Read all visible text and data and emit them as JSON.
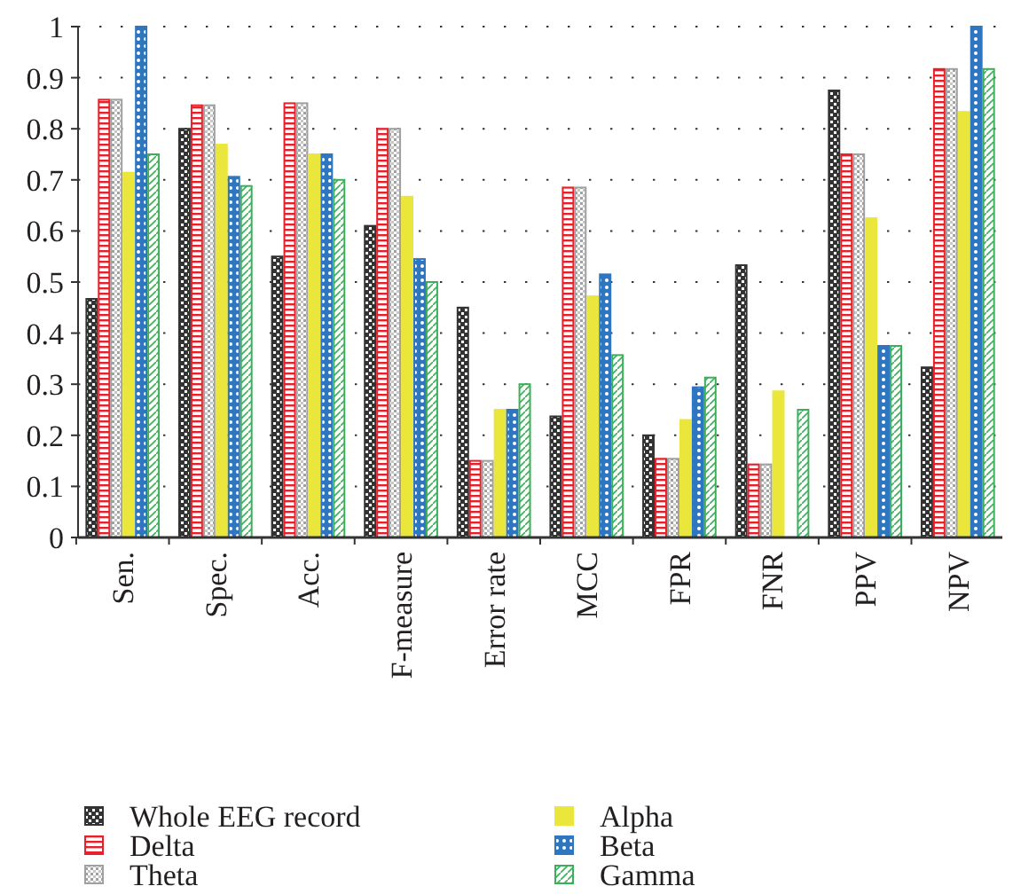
{
  "chart_data": {
    "type": "bar",
    "categories": [
      "Sen.",
      "Spec.",
      "Acc.",
      "F-measure",
      "Error rate",
      "MCC",
      "FPR",
      "FNR",
      "PPV",
      "NPV"
    ],
    "series": [
      {
        "name": "Whole EEG record",
        "color": "#333333",
        "values": [
          0.467,
          0.8,
          0.55,
          0.61,
          0.45,
          0.237,
          0.2,
          0.533,
          0.875,
          0.333
        ]
      },
      {
        "name": "Delta",
        "color": "#e8202a",
        "values": [
          0.857,
          0.846,
          0.85,
          0.8,
          0.15,
          0.685,
          0.154,
          0.143,
          0.75,
          0.917
        ]
      },
      {
        "name": "Theta",
        "color": "#a0a0a0",
        "values": [
          0.857,
          0.846,
          0.85,
          0.8,
          0.15,
          0.685,
          0.154,
          0.143,
          0.75,
          0.917
        ]
      },
      {
        "name": "Alpha",
        "color": "#ebe63c",
        "values": [
          0.714,
          0.769,
          0.75,
          0.667,
          0.25,
          0.472,
          0.23,
          0.286,
          0.625,
          0.833
        ]
      },
      {
        "name": "Beta",
        "color": "#2f76c0",
        "values": [
          1,
          0.706,
          0.75,
          0.545,
          0.25,
          0.515,
          0.294,
          0,
          0.375,
          1
        ]
      },
      {
        "name": "Gamma",
        "color": "#3daf5a",
        "values": [
          0.75,
          0.688,
          0.7,
          0.5,
          0.3,
          0.357,
          0.313,
          0.25,
          0.375,
          0.917
        ]
      }
    ],
    "ylim": [
      0,
      1
    ],
    "yticks": [
      0,
      0.1,
      0.2,
      0.3,
      0.4,
      0.5,
      0.6,
      0.7,
      0.8,
      0.9,
      1
    ],
    "grid": "y",
    "legend": "bottom"
  }
}
